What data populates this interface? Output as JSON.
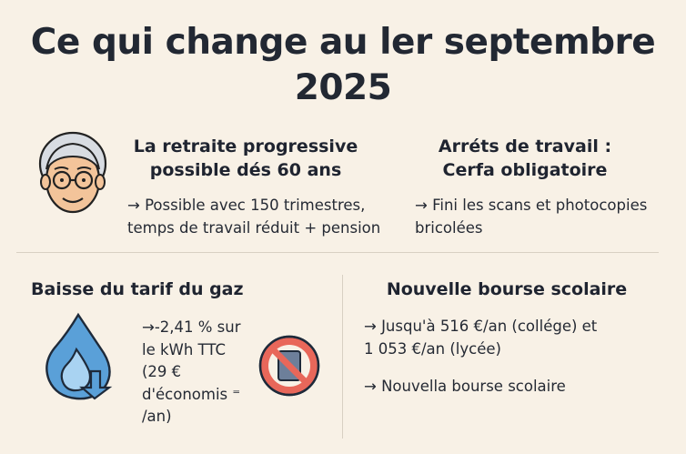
{
  "title": {
    "line1": "Ce qui change au ler septembre",
    "line2": "2025"
  },
  "sections": {
    "retraite": {
      "icon": "elderly-person-icon",
      "title_line1": "La retraite progressive",
      "title_line2": "possible dés 60 ans",
      "text_line1": "→ Possible avec 150 trimestres,",
      "text_line2": "temps de travail réduit + pension"
    },
    "arrets": {
      "title_line1": "Arréts de travail :",
      "title_line2": "Cerfa obligatoire",
      "text_line1": "→ Fini les scans et photocopies",
      "text_line2": "bricolées"
    },
    "gaz": {
      "icon": "gas-flame-icon",
      "title": "Baisse du tarif du gaz",
      "text_lines": [
        "→-2,41 % sur",
        "le kWh TTC",
        "(29 €",
        "d'économis ⁼",
        "/an)"
      ],
      "secondary_icon": "no-scan-icon"
    },
    "bourse": {
      "title": "Nouvelle bourse scolaire",
      "text_line1": "→ Jusqu'à 516 €/an (collége) et",
      "text_line2": "1 053 €/an (lycée)",
      "text_line3": "→ Nouvella bourse scolaire"
    }
  },
  "colors": {
    "background": "#f8f1e6",
    "flame": "#5aa0d8",
    "no_sign": "#e8675a"
  }
}
